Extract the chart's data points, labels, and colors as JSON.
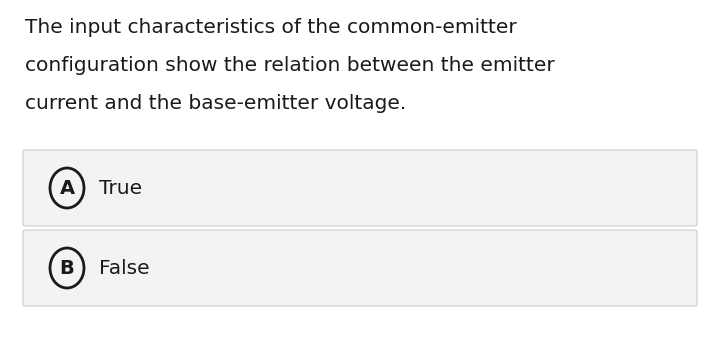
{
  "question_lines": [
    "The input characteristics of the common-emitter",
    "configuration show the relation between the emitter",
    "current and the base-emitter voltage."
  ],
  "options": [
    {
      "label": "A",
      "text": "True"
    },
    {
      "label": "B",
      "text": "False"
    }
  ],
  "background_color": "#ffffff",
  "option_box_color": "#f3f3f3",
  "option_box_border_color": "#cccccc",
  "text_color": "#1a1a1a",
  "question_fontsize": 14.5,
  "option_label_fontsize": 14,
  "option_text_fontsize": 14.5,
  "fig_width": 7.2,
  "fig_height": 3.56,
  "dpi": 100
}
